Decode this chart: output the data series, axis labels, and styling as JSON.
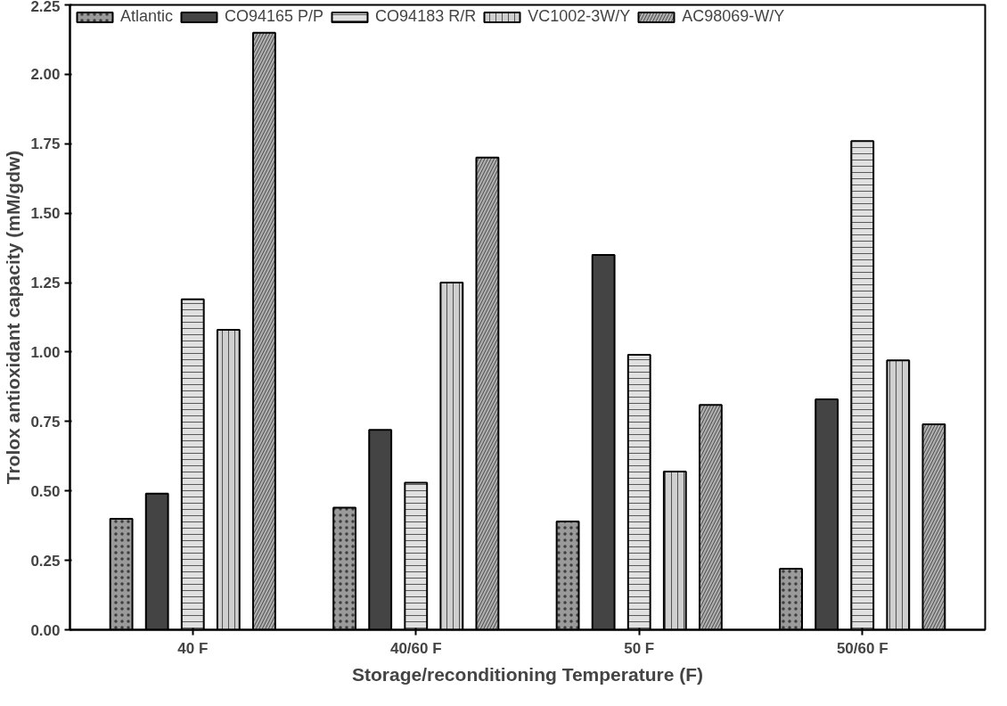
{
  "chart_data": {
    "type": "bar",
    "xlabel": "Storage/reconditioning Temperature (F)",
    "ylabel": "Trolox antioxidant capacity (mM/gdw)",
    "categories": [
      "40 F",
      "40/60 F",
      "50 F",
      "50/60 F"
    ],
    "series": [
      {
        "name": "Atlantic",
        "color": "#9a9a9a",
        "values": [
          0.4,
          0.44,
          0.39,
          0.22
        ]
      },
      {
        "name": "CO94165 P/P",
        "color": "#444444",
        "values": [
          0.49,
          0.72,
          1.35,
          0.83
        ]
      },
      {
        "name": "CO94183 R/R",
        "color": "#e0e0e0",
        "values": [
          1.19,
          0.53,
          0.99,
          1.76
        ]
      },
      {
        "name": "VC1002-3W/Y",
        "color": "#cfcfcf",
        "values": [
          1.08,
          1.25,
          0.57,
          0.97
        ]
      },
      {
        "name": "AC98069-W/Y",
        "color": "#b0b0b0",
        "values": [
          2.15,
          1.7,
          0.81,
          0.74
        ]
      }
    ],
    "ylim": [
      0,
      2.25
    ],
    "yticks": [
      {
        "value": 0,
        "label": "0.00"
      },
      {
        "value": 0.25,
        "label": "0.25"
      },
      {
        "value": 0.5,
        "label": "0.50"
      },
      {
        "value": 0.75,
        "label": "0.75"
      },
      {
        "value": 1,
        "label": "1.00"
      },
      {
        "value": 1.25,
        "label": "1.25"
      },
      {
        "value": 1.5,
        "label": "1.50"
      },
      {
        "value": 1.75,
        "label": "1.75"
      },
      {
        "value": 2,
        "label": "2.00"
      },
      {
        "value": 2.25,
        "label": "2.25"
      }
    ],
    "grid": false,
    "legend": "top left"
  }
}
